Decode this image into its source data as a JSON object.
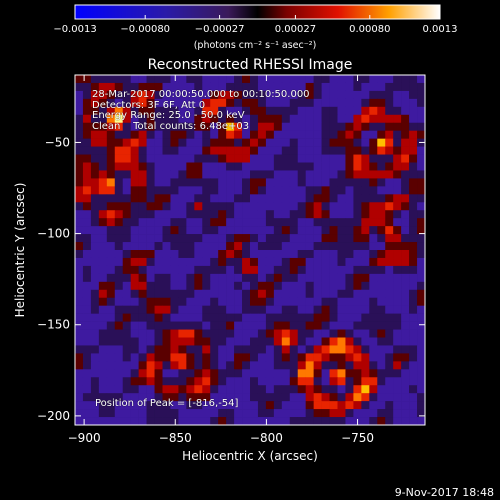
{
  "chart_data": {
    "type": "heatmap",
    "title": "Reconstructed RHESSI Image",
    "xlabel": "Heliocentric X (arcsec)",
    "ylabel": "Heliocentric Y (arcsec)",
    "xlim": [
      -905,
      -713
    ],
    "ylim": [
      -205,
      -13
    ],
    "x_ticks": [
      -900,
      -850,
      -800,
      -750
    ],
    "x_tick_labels": [
      "−900",
      "−850",
      "−800",
      "−750"
    ],
    "y_ticks": [
      -50,
      -100,
      -150,
      -200
    ],
    "y_tick_labels": [
      "−50",
      "−100",
      "−150",
      "−200"
    ],
    "colorbar": {
      "tick_values": [
        -0.0013,
        -0.0008,
        -0.00027,
        0.00027,
        0.0008,
        0.0013
      ],
      "tick_labels": [
        "−0.0013",
        "−0.00080",
        "−0.00027",
        "0.00027",
        "0.00080",
        "0.0013"
      ],
      "unit_label": "(photons cm⁻² s⁻¹ asec⁻²)",
      "range": [
        -0.0013,
        0.0013
      ]
    },
    "annotations": {
      "time_range": "28-Mar-2017 00:00:50.000 to 00:10:50.000",
      "detectors": "Detectors: 3F 6F, Att 0",
      "energy": "Energy Range: 25.0 - 50.0 keV",
      "clean": "Clean    Total counts: 6.48e+03",
      "peak": "Position of Peak = [-816,-54]"
    },
    "footer_date": "9-Nov-2017 18:48",
    "grid": false
  }
}
